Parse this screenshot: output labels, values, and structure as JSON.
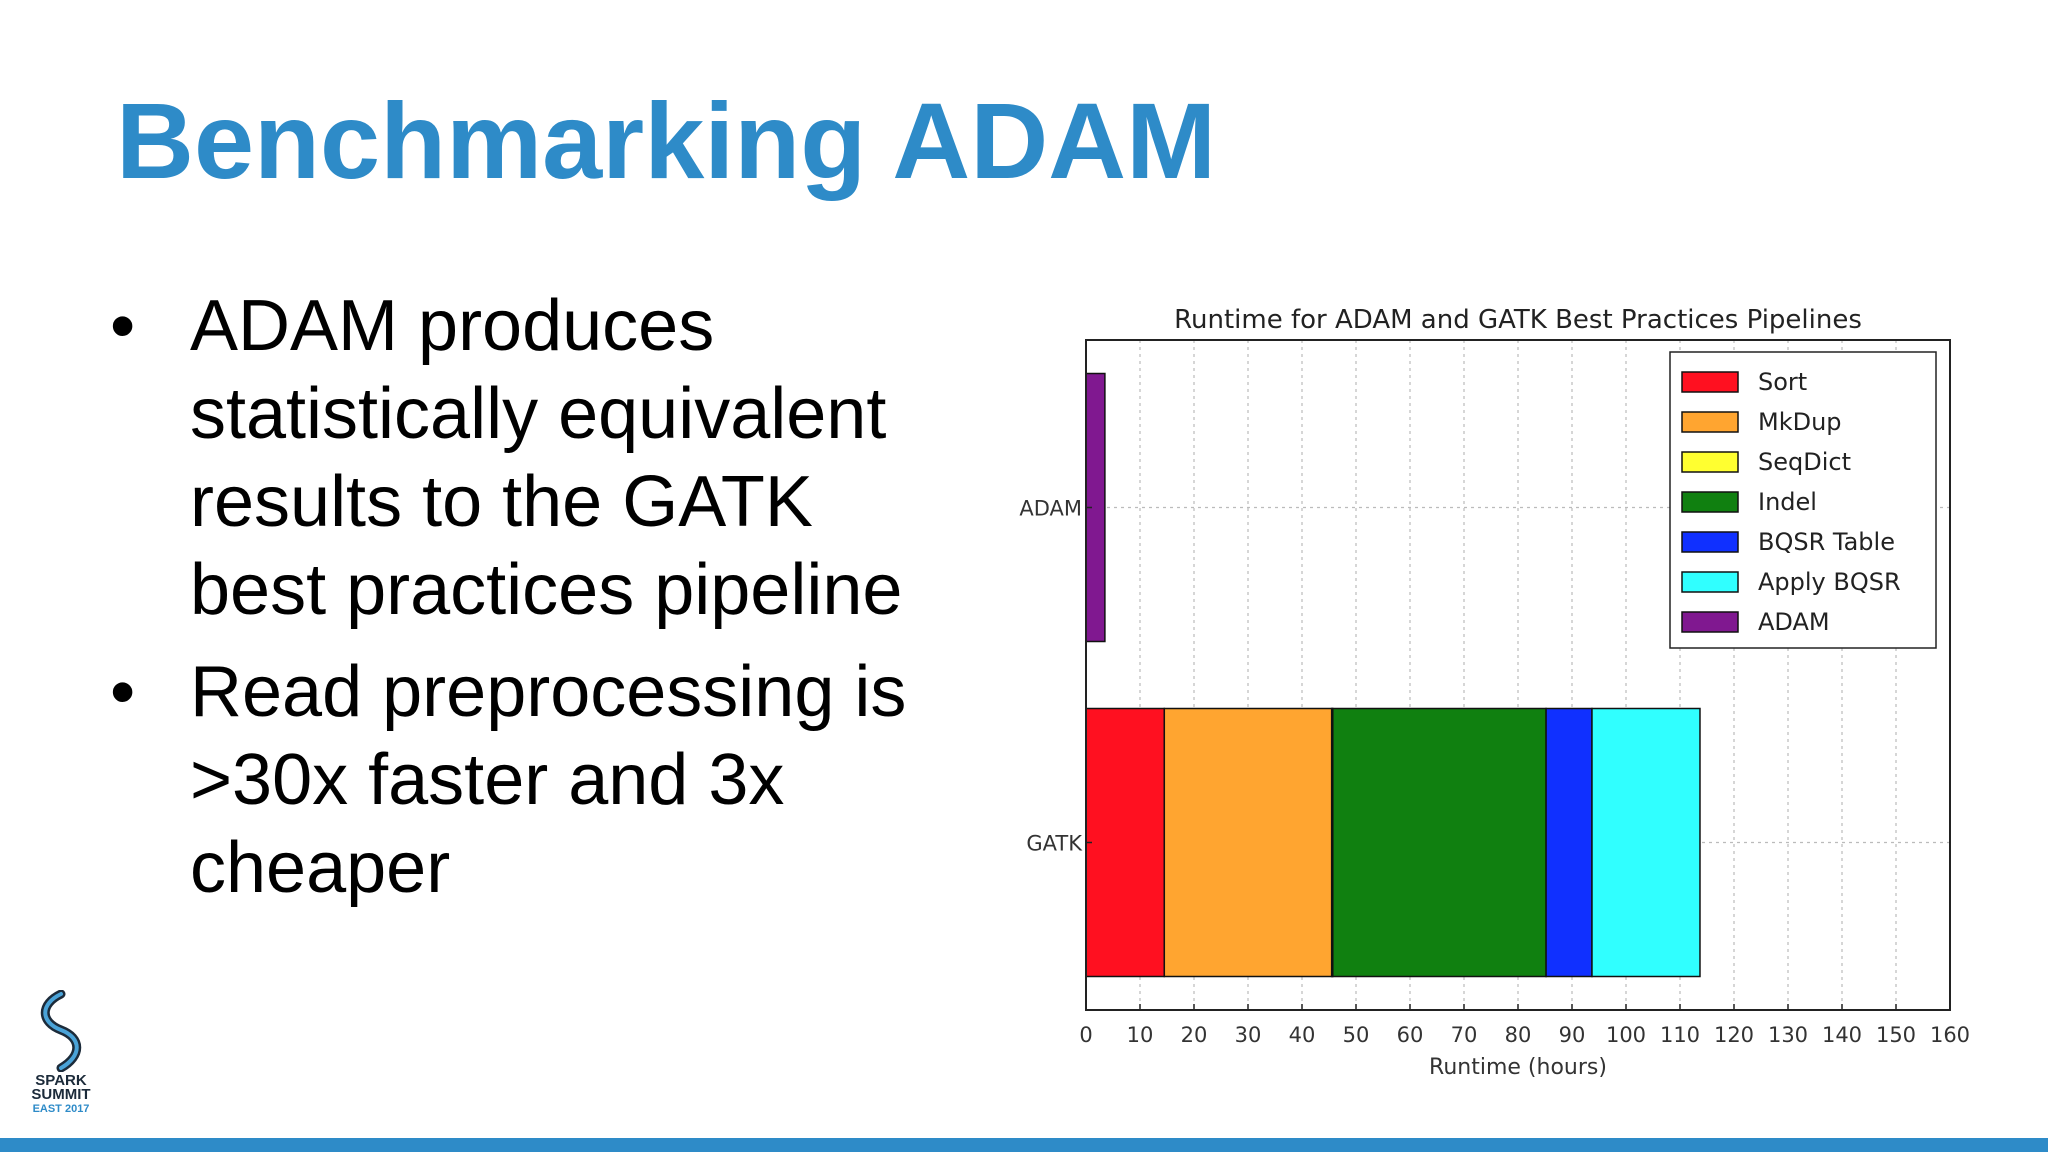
{
  "slide": {
    "title": "Benchmarking ADAM",
    "bullets": [
      "ADAM produces statistically equivalent results to the GATK best practices pipeline",
      "Read preprocessing is >30x faster and 3x cheaper"
    ]
  },
  "logo": {
    "line1": "SPARK",
    "line2": "SUMMIT",
    "line3": "EAST 2017"
  },
  "colors": {
    "title": "#2e8bc8",
    "footer": "#2e8bc8"
  },
  "chart_data": {
    "type": "bar",
    "orientation": "horizontal",
    "stacked": true,
    "title": "Runtime for ADAM and GATK Best Practices Pipelines",
    "xlabel": "Runtime (hours)",
    "ylabel": "",
    "xlim": [
      0,
      160
    ],
    "xticks": [
      0,
      10,
      20,
      30,
      40,
      50,
      60,
      70,
      80,
      90,
      100,
      110,
      120,
      130,
      140,
      150,
      160
    ],
    "grid": true,
    "legend_position": "top-right",
    "categories": [
      "ADAM",
      "GATK"
    ],
    "series": [
      {
        "name": "Sort",
        "color": "#ff1020",
        "values": [
          0,
          14.5
        ]
      },
      {
        "name": "MkDup",
        "color": "#ffa530",
        "values": [
          0,
          31
        ]
      },
      {
        "name": "SeqDict",
        "color": "#ffff30",
        "values": [
          0,
          0.2
        ]
      },
      {
        "name": "Indel",
        "color": "#108010",
        "values": [
          0,
          39.5
        ]
      },
      {
        "name": "BQSR Table",
        "color": "#1030ff",
        "values": [
          0,
          8.5
        ]
      },
      {
        "name": "Apply BQSR",
        "color": "#30ffff",
        "values": [
          0,
          20
        ]
      },
      {
        "name": "ADAM",
        "color": "#801890",
        "values": [
          3.5,
          0
        ]
      }
    ]
  }
}
